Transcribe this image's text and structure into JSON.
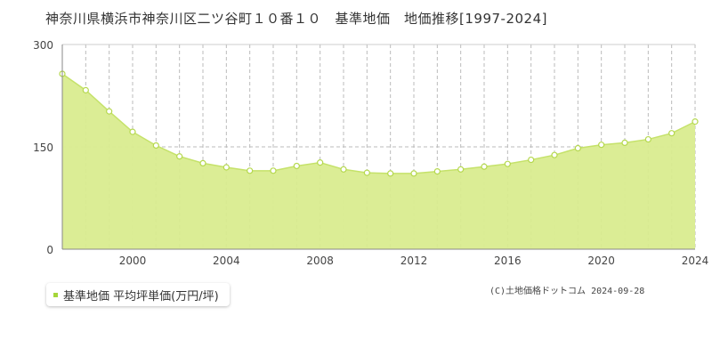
{
  "title": "神奈川県横浜市神奈川区二ツ谷町１０番１０　基準地価　地価推移[1997-2024]",
  "legend_label": "基準地価 平均坪単価(万円/坪)",
  "credit": "(C)土地価格ドットコム 2024-09-28",
  "colors": {
    "area_fill": "#d9ec8f",
    "line": "#c5e26a",
    "marker_fill": "#ffffff",
    "marker_stroke": "#b5d84e",
    "grid": "#bbbbbb",
    "axis": "#888888",
    "legend_swatch": "#a5d63a"
  },
  "chart_data": {
    "type": "area",
    "title": "神奈川県横浜市神奈川区二ツ谷町１０番１０　基準地価　地価推移[1997-2024]",
    "xlabel": "",
    "ylabel": "",
    "xlim": [
      1997,
      2024
    ],
    "ylim": [
      0,
      300
    ],
    "yticks": [
      0,
      150,
      300
    ],
    "xticks": [
      2000,
      2004,
      2008,
      2012,
      2016,
      2020,
      2024
    ],
    "grid": "vertical dashed per year, horizontal dashed at 150",
    "legend_position": "bottom-left",
    "series": [
      {
        "name": "基準地価 平均坪単価(万円/坪)",
        "x": [
          1997,
          1998,
          1999,
          2000,
          2001,
          2002,
          2003,
          2004,
          2005,
          2006,
          2007,
          2008,
          2009,
          2010,
          2011,
          2012,
          2013,
          2014,
          2015,
          2016,
          2017,
          2018,
          2019,
          2020,
          2021,
          2022,
          2023,
          2024
        ],
        "values": [
          257,
          233,
          202,
          172,
          152,
          136,
          126,
          120,
          115,
          115,
          122,
          127,
          117,
          112,
          111,
          111,
          114,
          117,
          121,
          125,
          131,
          138,
          148,
          153,
          156,
          161,
          170,
          187
        ]
      }
    ]
  }
}
